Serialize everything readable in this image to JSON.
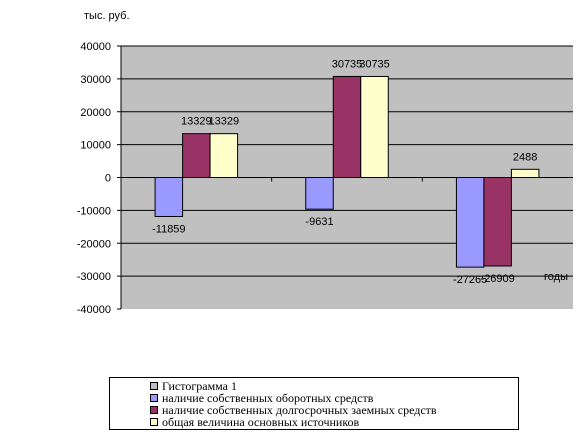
{
  "unit_label": "тыс. руб.",
  "x_axis_label": "годы",
  "legend_title": "Гистограмма 1",
  "chart_data": {
    "type": "bar",
    "categories": [
      "",
      "",
      ""
    ],
    "ylim": [
      -40000,
      40000
    ],
    "yticks": [
      40000,
      30000,
      20000,
      10000,
      0,
      -10000,
      -20000,
      -30000,
      -40000
    ],
    "grid": true,
    "plot_background": "#c0c0c0",
    "legend_placement": "bottom",
    "series": [
      {
        "name": "наличие собственных оборотных средств",
        "color": "#9999ff",
        "values": [
          -11859,
          -9631,
          -27265
        ],
        "labels": [
          "-11859",
          "-9631",
          "-27265"
        ]
      },
      {
        "name": "наличие собственных долгосрочных заемных средств",
        "color": "#993366",
        "values": [
          13329,
          30735,
          -26909
        ],
        "labels": [
          "13329",
          "30735",
          "-26909"
        ]
      },
      {
        "name": "общая величина основных источников",
        "color": "#ffffcc",
        "values": [
          13329,
          30735,
          2488
        ],
        "labels": [
          "13329",
          "30735",
          "2488"
        ]
      }
    ]
  }
}
